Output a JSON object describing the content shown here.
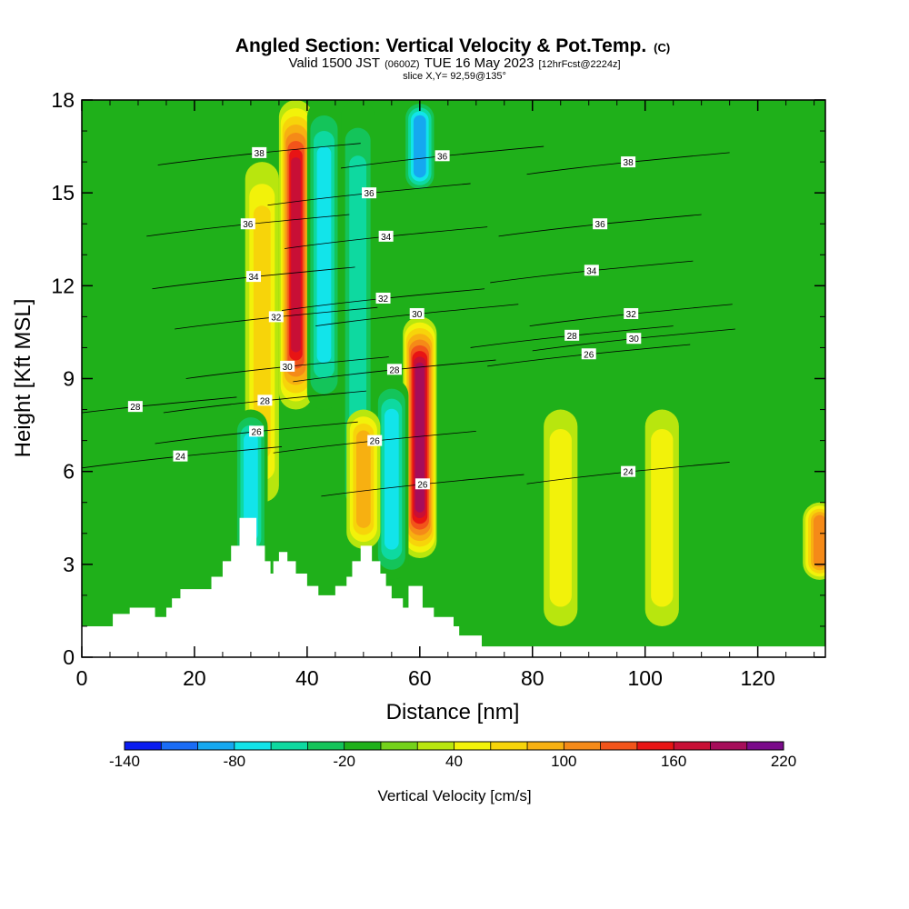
{
  "chart_data": {
    "type": "heatmap",
    "title": "Angled Section: Vertical Velocity & Pot.Temp.",
    "title_mark": "(C)",
    "subtitle": {
      "valid": "Valid 1500 JST",
      "zulu": "(0600Z)",
      "date": "TUE 16 May 2023",
      "forecast": "[12hrFcst@2224z]"
    },
    "slice": "slice X,Y= 92,59@135°",
    "xlabel": "Distance [nm]",
    "ylabel": "Height [Kft MSL]",
    "xlim": [
      0,
      132
    ],
    "ylim": [
      0,
      18
    ],
    "x_ticks": [
      0,
      20,
      40,
      60,
      80,
      100,
      120
    ],
    "y_ticks": [
      0,
      3,
      6,
      9,
      12,
      15,
      18
    ],
    "colorbar": {
      "label": "Vertical Velocity [cm/s]",
      "levels": [
        -140,
        -120,
        -100,
        -80,
        -60,
        -40,
        -20,
        0,
        20,
        40,
        60,
        80,
        100,
        120,
        140,
        160,
        180,
        200,
        220
      ],
      "tick_labels": [
        -140,
        -80,
        -20,
        40,
        100,
        160,
        220
      ],
      "colors": [
        "#0a1cf0",
        "#1a6cf5",
        "#15a8f0",
        "#12e4ea",
        "#0ed9a0",
        "#14c45a",
        "#1fb01a",
        "#74d21a",
        "#b8e60e",
        "#f2f20a",
        "#f7d40a",
        "#f7b011",
        "#f58a18",
        "#f2541a",
        "#e81414",
        "#c80f35",
        "#a60d5a",
        "#7a0a8a"
      ]
    },
    "vertical_velocity_features": [
      {
        "x": 38,
        "zmin": 8.0,
        "zmax": 18,
        "value": 160,
        "kind": "updraft"
      },
      {
        "x": 32,
        "zmin": 5.0,
        "zmax": 16,
        "value": 60,
        "kind": "updraft"
      },
      {
        "x": 43,
        "zmin": 8.0,
        "zmax": 18,
        "value": -90,
        "kind": "downdraft"
      },
      {
        "x": 49,
        "zmin": 4.0,
        "zmax": 18,
        "value": -70,
        "kind": "downdraft"
      },
      {
        "x": 60,
        "zmin": 3.2,
        "zmax": 11,
        "value": 180,
        "kind": "updraft"
      },
      {
        "x": 60,
        "zmin": 15,
        "zmax": 18,
        "value": -110,
        "kind": "downdraft"
      },
      {
        "x": 55,
        "zmin": 2.5,
        "zmax": 9,
        "value": -90,
        "kind": "downdraft"
      },
      {
        "x": 50,
        "zmin": 3.5,
        "zmax": 8,
        "value": 80,
        "kind": "updraft"
      },
      {
        "x": 30,
        "zmin": 3.0,
        "zmax": 8,
        "value": -80,
        "kind": "downdraft"
      },
      {
        "x": 85,
        "zmin": 1.0,
        "zmax": 8,
        "value": 40,
        "kind": "updraft"
      },
      {
        "x": 103,
        "zmin": 1.0,
        "zmax": 8,
        "value": 50,
        "kind": "updraft"
      },
      {
        "x": 131,
        "zmin": 2.5,
        "zmax": 5,
        "value": 100,
        "kind": "updraft"
      }
    ],
    "isentrope_labels": [
      {
        "x": 31.5,
        "y": 16.3,
        "label": "38"
      },
      {
        "x": 29.5,
        "y": 14.0,
        "label": "36"
      },
      {
        "x": 30.5,
        "y": 12.3,
        "label": "34"
      },
      {
        "x": 34.5,
        "y": 11.0,
        "label": "32"
      },
      {
        "x": 36.5,
        "y": 9.4,
        "label": "30"
      },
      {
        "x": 32.5,
        "y": 8.3,
        "label": "28"
      },
      {
        "x": 31.0,
        "y": 7.3,
        "label": "26"
      },
      {
        "x": 9.5,
        "y": 8.1,
        "label": "28"
      },
      {
        "x": 17.5,
        "y": 6.5,
        "label": "24"
      },
      {
        "x": 51.0,
        "y": 15.0,
        "label": "36"
      },
      {
        "x": 54.0,
        "y": 13.6,
        "label": "34"
      },
      {
        "x": 53.5,
        "y": 11.6,
        "label": "32"
      },
      {
        "x": 59.5,
        "y": 11.1,
        "label": "30"
      },
      {
        "x": 55.5,
        "y": 9.3,
        "label": "28"
      },
      {
        "x": 52.0,
        "y": 7.0,
        "label": "26"
      },
      {
        "x": 60.5,
        "y": 5.6,
        "label": "26"
      },
      {
        "x": 64.0,
        "y": 16.2,
        "label": "36"
      },
      {
        "x": 97.0,
        "y": 16.0,
        "label": "38"
      },
      {
        "x": 92.0,
        "y": 14.0,
        "label": "36"
      },
      {
        "x": 90.5,
        "y": 12.5,
        "label": "34"
      },
      {
        "x": 97.5,
        "y": 11.1,
        "label": "32"
      },
      {
        "x": 87.0,
        "y": 10.4,
        "label": "28"
      },
      {
        "x": 98.0,
        "y": 10.3,
        "label": "30"
      },
      {
        "x": 90.0,
        "y": 9.8,
        "label": "26"
      },
      {
        "x": 97.0,
        "y": 6.0,
        "label": "24"
      }
    ],
    "terrain": [
      [
        0,
        1.0
      ],
      [
        5.5,
        1.0
      ],
      [
        5.5,
        1.4
      ],
      [
        8.5,
        1.4
      ],
      [
        8.5,
        1.6
      ],
      [
        13,
        1.6
      ],
      [
        13,
        1.3
      ],
      [
        15,
        1.3
      ],
      [
        15,
        1.6
      ],
      [
        16,
        1.6
      ],
      [
        16,
        1.9
      ],
      [
        17.5,
        1.9
      ],
      [
        17.5,
        2.2
      ],
      [
        23,
        2.2
      ],
      [
        23,
        2.6
      ],
      [
        25,
        2.6
      ],
      [
        25,
        3.1
      ],
      [
        26.5,
        3.1
      ],
      [
        26.5,
        3.6
      ],
      [
        28,
        3.6
      ],
      [
        28,
        4.5
      ],
      [
        31,
        4.5
      ],
      [
        31,
        3.6
      ],
      [
        32.5,
        3.6
      ],
      [
        32.5,
        3.1
      ],
      [
        33.5,
        3.1
      ],
      [
        33.5,
        2.7
      ],
      [
        34,
        2.7
      ],
      [
        34,
        3.1
      ],
      [
        35,
        3.1
      ],
      [
        35,
        3.4
      ],
      [
        36.5,
        3.4
      ],
      [
        36.5,
        3.1
      ],
      [
        38,
        3.1
      ],
      [
        38,
        2.7
      ],
      [
        40,
        2.7
      ],
      [
        40,
        2.3
      ],
      [
        42,
        2.3
      ],
      [
        42,
        2.0
      ],
      [
        45,
        2.0
      ],
      [
        45,
        2.3
      ],
      [
        47,
        2.3
      ],
      [
        47,
        2.6
      ],
      [
        48,
        2.6
      ],
      [
        48,
        3.1
      ],
      [
        49.5,
        3.1
      ],
      [
        49.5,
        3.6
      ],
      [
        51.5,
        3.6
      ],
      [
        51.5,
        3.1
      ],
      [
        53,
        3.1
      ],
      [
        53,
        2.7
      ],
      [
        54,
        2.7
      ],
      [
        54,
        2.3
      ],
      [
        55,
        2.3
      ],
      [
        55,
        1.9
      ],
      [
        57,
        1.9
      ],
      [
        57,
        1.6
      ],
      [
        58,
        1.6
      ],
      [
        58,
        2.3
      ],
      [
        60.5,
        2.3
      ],
      [
        60.5,
        1.6
      ],
      [
        62.5,
        1.6
      ],
      [
        62.5,
        1.3
      ],
      [
        66,
        1.3
      ],
      [
        66,
        1.0
      ],
      [
        67,
        1.0
      ],
      [
        67,
        0.7
      ],
      [
        71,
        0.7
      ],
      [
        71,
        0.35
      ],
      [
        132,
        0.35
      ]
    ]
  }
}
